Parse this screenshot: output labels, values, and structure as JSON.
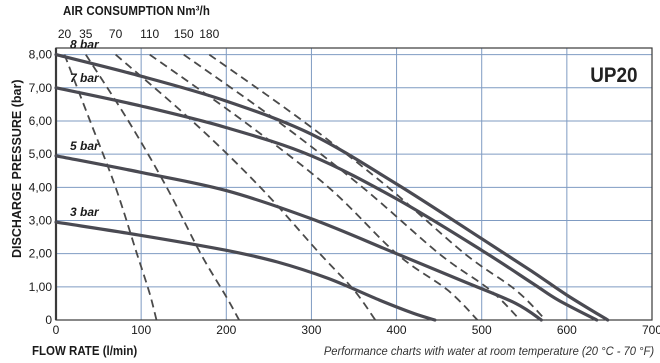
{
  "chart_data": {
    "type": "line",
    "title": "AIR CONSUMPTION Nm³/h",
    "model": "UP20",
    "xlabel": "FLOW RATE (l/min)",
    "ylabel": "DISCHARGE PRESSURE (bar)",
    "footnote": "Performance charts with water at room temperature (20 °C - 70 °F)",
    "xlim": [
      0,
      700
    ],
    "ylim": [
      0,
      8.2
    ],
    "grid": true,
    "x_ticks": [
      0,
      100,
      200,
      300,
      400,
      500,
      600,
      700
    ],
    "x_tick_labels": [
      "0",
      "100",
      "200",
      "300",
      "400",
      "500",
      "600",
      "700"
    ],
    "y_ticks": [
      0,
      1,
      2,
      3,
      4,
      5,
      6,
      7,
      8
    ],
    "y_tick_labels": [
      "0",
      "1,00",
      "2,00",
      "3,00",
      "4,00",
      "5,00",
      "6,00",
      "7,00",
      "8,00"
    ],
    "series": [
      {
        "name": "8 bar",
        "style": "solid",
        "points": [
          [
            0,
            8.0
          ],
          [
            100,
            7.35
          ],
          [
            200,
            6.6
          ],
          [
            300,
            5.6
          ],
          [
            400,
            4.1
          ],
          [
            500,
            2.45
          ],
          [
            560,
            1.45
          ],
          [
            600,
            0.75
          ],
          [
            648,
            0
          ]
        ]
      },
      {
        "name": "7 bar",
        "style": "solid",
        "points": [
          [
            0,
            7.0
          ],
          [
            100,
            6.45
          ],
          [
            200,
            5.8
          ],
          [
            300,
            4.95
          ],
          [
            400,
            3.65
          ],
          [
            500,
            2.1
          ],
          [
            560,
            1.1
          ],
          [
            590,
            0.6
          ],
          [
            635,
            0
          ]
        ]
      },
      {
        "name": "5 bar",
        "style": "solid",
        "points": [
          [
            0,
            4.95
          ],
          [
            100,
            4.45
          ],
          [
            200,
            3.9
          ],
          [
            300,
            3.05
          ],
          [
            400,
            2.0
          ],
          [
            480,
            1.15
          ],
          [
            540,
            0.5
          ],
          [
            570,
            0
          ]
        ]
      },
      {
        "name": "3 bar",
        "style": "solid",
        "points": [
          [
            0,
            2.95
          ],
          [
            100,
            2.55
          ],
          [
            200,
            2.1
          ],
          [
            260,
            1.75
          ],
          [
            320,
            1.25
          ],
          [
            380,
            0.6
          ],
          [
            420,
            0.2
          ],
          [
            445,
            0
          ]
        ]
      }
    ],
    "air_consumption_curves": [
      {
        "label": "20",
        "style": "dashed",
        "points": [
          [
            10,
            8.0
          ],
          [
            40,
            6.0
          ],
          [
            70,
            4.0
          ],
          [
            95,
            2.0
          ],
          [
            110,
            0.8
          ],
          [
            118,
            0
          ]
        ]
      },
      {
        "label": "35",
        "style": "dashed",
        "points": [
          [
            35,
            8.0
          ],
          [
            85,
            6.0
          ],
          [
            130,
            4.0
          ],
          [
            170,
            2.0
          ],
          [
            200,
            0.7
          ],
          [
            215,
            0
          ]
        ]
      },
      {
        "label": "70",
        "style": "dashed",
        "points": [
          [
            70,
            8.0
          ],
          [
            160,
            6.0
          ],
          [
            240,
            4.0
          ],
          [
            310,
            2.0
          ],
          [
            350,
            0.9
          ],
          [
            375,
            0
          ]
        ]
      },
      {
        "label": "110",
        "style": "dashed",
        "points": [
          [
            110,
            8.0
          ],
          [
            220,
            6.0
          ],
          [
            320,
            4.0
          ],
          [
            400,
            2.0
          ],
          [
            460,
            0.9
          ],
          [
            495,
            0
          ]
        ]
      },
      {
        "label": "150",
        "style": "dashed",
        "points": [
          [
            150,
            8.0
          ],
          [
            260,
            6.0
          ],
          [
            360,
            4.0
          ],
          [
            450,
            2.0
          ],
          [
            510,
            0.9
          ],
          [
            545,
            0
          ]
        ]
      },
      {
        "label": "180",
        "style": "dashed",
        "points": [
          [
            180,
            8.0
          ],
          [
            290,
            6.0
          ],
          [
            390,
            4.0
          ],
          [
            480,
            2.0
          ],
          [
            540,
            0.9
          ],
          [
            575,
            0
          ]
        ]
      }
    ],
    "colors": {
      "curve": "#4a4a52",
      "grid": "#7f9bc2",
      "frame": "#3a3a3a",
      "text": "#1a1a1a"
    }
  }
}
